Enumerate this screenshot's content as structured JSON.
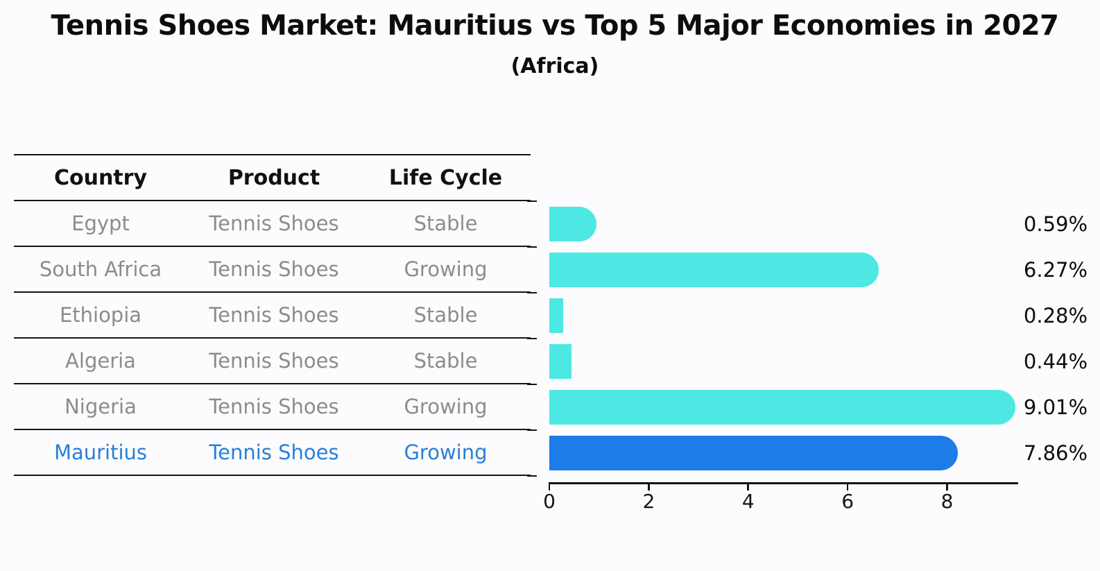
{
  "title": "Tennis Shoes Market: Mauritius vs Top 5 Major Economies in 2027",
  "subtitle": "(Africa)",
  "table": {
    "headers": [
      "Country",
      "Product",
      "Life Cycle"
    ],
    "rows": [
      {
        "country": "Egypt",
        "product": "Tennis Shoes",
        "life_cycle": "Stable",
        "highlight": false
      },
      {
        "country": "South Africa",
        "product": "Tennis Shoes",
        "life_cycle": "Growing",
        "highlight": false
      },
      {
        "country": "Ethiopia",
        "product": "Tennis Shoes",
        "life_cycle": "Stable",
        "highlight": false
      },
      {
        "country": "Algeria",
        "product": "Tennis Shoes",
        "life_cycle": "Stable",
        "highlight": false
      },
      {
        "country": "Nigeria",
        "product": "Tennis Shoes",
        "life_cycle": "Growing",
        "highlight": false
      },
      {
        "country": "Mauritius",
        "product": "Tennis Shoes",
        "life_cycle": "Growing",
        "highlight": true
      }
    ]
  },
  "chart_data": {
    "type": "bar",
    "orientation": "horizontal",
    "title": "Tennis Shoes Market: Mauritius vs Top 5 Major Economies in 2027",
    "subtitle": "(Africa)",
    "categories": [
      "Egypt",
      "South Africa",
      "Ethiopia",
      "Algeria",
      "Nigeria",
      "Mauritius"
    ],
    "values": [
      0.59,
      6.27,
      0.28,
      0.44,
      9.01,
      7.86
    ],
    "value_labels": [
      "0.59%",
      "6.27%",
      "0.28%",
      "0.44%",
      "9.01%",
      "7.86%"
    ],
    "xticks": [
      0,
      2,
      4,
      6,
      8
    ],
    "xlim": [
      0,
      9.43
    ],
    "grid": false,
    "legend": false,
    "highlight_index": 5,
    "bar_color": "#4DE8E4",
    "highlight_color": "#1E7CE8"
  },
  "colors": {
    "bar": "#4DE8E4",
    "highlight_bar": "#1E7CE8",
    "highlight_text": "#2880D8",
    "table_text": "#8C8C8C",
    "heading_text": "#111111",
    "axis": "#141414",
    "background": "#FCFBFD"
  }
}
